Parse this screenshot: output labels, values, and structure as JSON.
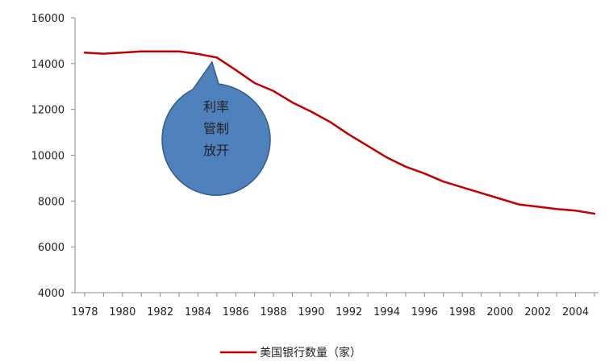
{
  "chart_data": {
    "type": "line",
    "x": [
      1978,
      1979,
      1980,
      1981,
      1982,
      1983,
      1984,
      1985,
      1986,
      1987,
      1988,
      1989,
      1990,
      1991,
      1992,
      1993,
      1994,
      1995,
      1996,
      1997,
      1998,
      1999,
      2000,
      2001,
      2002,
      2003,
      2004,
      2005
    ],
    "xticks": [
      "1978",
      "1980",
      "1982",
      "1984",
      "1986",
      "1988",
      "1990",
      "1992",
      "1994",
      "1996",
      "1998",
      "2000",
      "2002",
      "2004"
    ],
    "ylim": [
      4000,
      16000
    ],
    "yticks": [
      "4000",
      "6000",
      "8000",
      "10000",
      "12000",
      "14000",
      "16000"
    ],
    "series": [
      {
        "name": "美国银行数量（家）",
        "color": "#c00000",
        "values": [
          14480,
          14430,
          14480,
          14530,
          14530,
          14530,
          14420,
          14260,
          13720,
          13150,
          12800,
          12300,
          11900,
          11450,
          10900,
          10400,
          9900,
          9500,
          9200,
          8850,
          8600,
          8350,
          8100,
          7850,
          7750,
          7650,
          7580,
          7450
        ]
      }
    ],
    "legend": "bottom",
    "grid": false,
    "annotations": [
      {
        "lines": [
          "利率",
          "管制",
          "放开"
        ],
        "shape": "speech-bubble",
        "fill": "#4f81bd",
        "stroke": "#2e5d8c",
        "points_to_x": 1985
      }
    ]
  }
}
